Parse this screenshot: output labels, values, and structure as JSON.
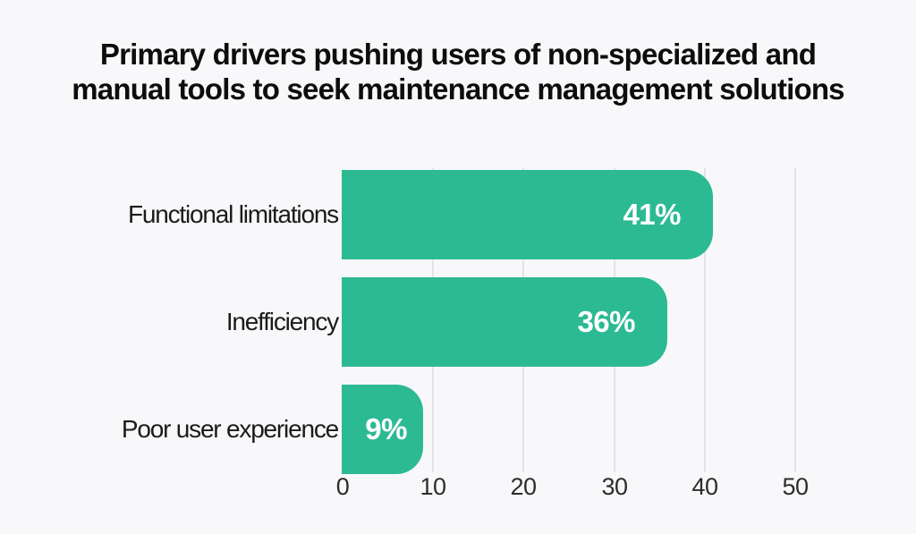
{
  "page": {
    "background": "#f8f8fa"
  },
  "header": {
    "title_line1": "Primary drivers pushing users of non-specialized and",
    "title_line2": "manual tools to seek maintenance management solutions"
  },
  "chart_data": {
    "type": "bar",
    "orientation": "horizontal",
    "title": "Primary drivers pushing users of non-specialized and manual tools to seek maintenance management solutions",
    "categories": [
      "Functional limitations",
      "Inefficiency",
      "Poor user experience"
    ],
    "values": [
      41,
      36,
      9
    ],
    "value_labels": [
      "41%",
      "36%",
      "9%"
    ],
    "x_ticks": [
      0,
      10,
      20,
      30,
      40,
      50
    ],
    "xlim": [
      0,
      50
    ],
    "grid": true,
    "legend": "none",
    "colors": {
      "bar": "#2cba93",
      "value_label": "#ffffff",
      "gridline": "#e3e3e7",
      "tick_label": "#2d2d2d",
      "category_label": "#1b1b1b",
      "title": "#0d0d0d",
      "background": "#f8f8fa"
    }
  }
}
